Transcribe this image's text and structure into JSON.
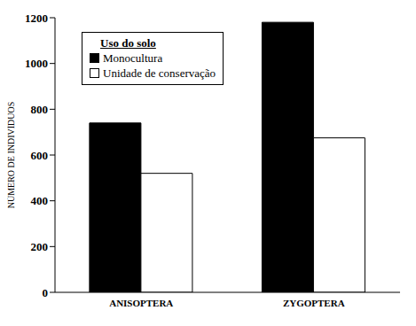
{
  "chart_data": {
    "type": "bar",
    "categories": [
      "ANISOPTERA",
      "ZYGOPTERA"
    ],
    "series": [
      {
        "name": "Monocultura",
        "color": "#000000",
        "values": [
          740,
          1180
        ]
      },
      {
        "name": "Unidade de conservação",
        "color": "#ffffff",
        "values": [
          520,
          675
        ]
      }
    ],
    "y_label": "NÚMERO DE INDIVÍDUOS",
    "legend_title": "Uso do solo",
    "legend": "upper left",
    "ylim": [
      0,
      1200
    ],
    "yticks": [
      0,
      200,
      400,
      600,
      800,
      1000,
      1200
    ],
    "grid": false
  }
}
